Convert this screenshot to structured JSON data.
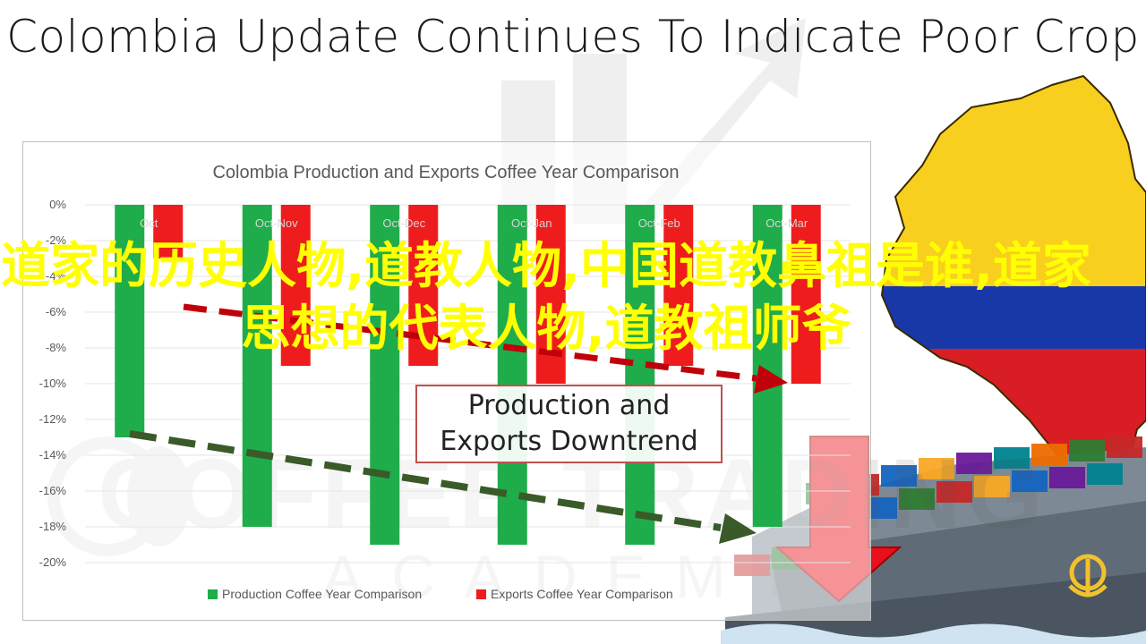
{
  "headline": "Colombia Update Continues To Indicate Poor Crop",
  "overlay_text": "道家的历史人物,道教人物,中国道教鼻祖是谁,道家思想的代表人物,道教祖师爷",
  "callout": "Production and Exports Downtrend",
  "watermark": {
    "line1": "COFFEE TRADING",
    "line2": "ACADEMY"
  },
  "colors": {
    "production": "#1fac4b",
    "exports": "#ee1c1c",
    "prod_arrow": "#3a5a2a",
    "exp_arrow": "#c0000a",
    "frame": "#bfbfbf",
    "map_yellow": "#f8cf1e",
    "map_blue": "#1838a8",
    "map_red": "#d81e24"
  },
  "chart_data": {
    "type": "bar",
    "title": "Colombia Production and Exports Coffee Year Comparison",
    "categories": [
      "Oct",
      "Oct-Nov",
      "Oct-Dec",
      "Oct-Jan",
      "Oct-Feb",
      "Oct-Mar"
    ],
    "series": [
      {
        "name": "Production Coffee Year Comparison",
        "values": [
          -13,
          -18,
          -19,
          -19,
          -19,
          -18
        ]
      },
      {
        "name": "Exports Coffee Year Comparison",
        "values": [
          -3,
          -9,
          -9,
          -10,
          -9,
          -10
        ]
      }
    ],
    "ylim": [
      -20,
      0
    ],
    "yticks": [
      "0%",
      "-2%",
      "-4%",
      "-6%",
      "-8%",
      "-10%",
      "-12%",
      "-14%",
      "-16%",
      "-18%",
      "-20%"
    ],
    "ytick_values": [
      0,
      -2,
      -4,
      -6,
      -8,
      -10,
      -12,
      -14,
      -16,
      -18,
      -20
    ],
    "legend_position": "bottom"
  }
}
